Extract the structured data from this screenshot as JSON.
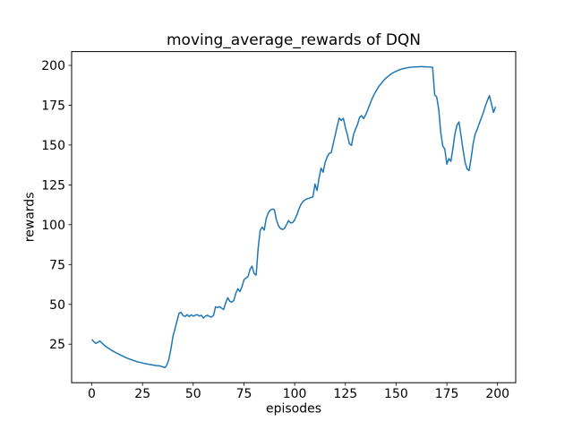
{
  "chart_data": {
    "type": "line",
    "title": "moving_average_rewards of DQN",
    "xlabel": "episodes",
    "ylabel": "rewards",
    "x_ticks": [
      0,
      25,
      50,
      75,
      100,
      125,
      150,
      175,
      200
    ],
    "y_ticks": [
      25,
      50,
      75,
      100,
      125,
      150,
      175,
      200
    ],
    "xlim": [
      -9.95,
      208.95
    ],
    "ylim": [
      0.85,
      208.65
    ],
    "grid": false,
    "legend_position": "none",
    "line_color": "#1f77b4",
    "axes_color": "#000000",
    "background_color": "#ffffff",
    "series": [
      {
        "name": "moving_average_rewards",
        "points": [
          [
            0,
            28
          ],
          [
            1,
            26.6
          ],
          [
            2,
            25.5
          ],
          [
            3,
            26.2
          ],
          [
            4,
            27
          ],
          [
            5,
            25.8
          ],
          [
            6,
            24.5
          ],
          [
            7,
            23.5
          ],
          [
            8,
            22.6
          ],
          [
            9,
            21.8
          ],
          [
            10,
            21
          ],
          [
            11,
            20.3
          ],
          [
            12,
            19.6
          ],
          [
            13,
            19
          ],
          [
            14,
            18.3
          ],
          [
            15,
            17.7
          ],
          [
            16,
            17.1
          ],
          [
            17,
            16.5
          ],
          [
            18,
            16
          ],
          [
            19,
            15.5
          ],
          [
            20,
            15
          ],
          [
            21,
            14.6
          ],
          [
            22,
            14.2
          ],
          [
            23,
            13.8
          ],
          [
            24,
            13.5
          ],
          [
            25,
            13.2
          ],
          [
            26,
            12.9
          ],
          [
            27,
            12.7
          ],
          [
            28,
            12.4
          ],
          [
            29,
            12.2
          ],
          [
            30,
            12
          ],
          [
            31,
            11.8
          ],
          [
            32,
            11.6
          ],
          [
            33,
            11.4
          ],
          [
            34,
            11.2
          ],
          [
            35,
            10.8
          ],
          [
            36,
            10.3
          ],
          [
            37,
            12
          ],
          [
            38,
            15.5
          ],
          [
            39,
            22
          ],
          [
            40,
            30
          ],
          [
            41,
            34.5
          ],
          [
            42,
            39.5
          ],
          [
            43,
            44.5
          ],
          [
            44,
            45
          ],
          [
            45,
            43
          ],
          [
            46,
            42.4
          ],
          [
            47,
            43.6
          ],
          [
            48,
            42.4
          ],
          [
            49,
            43.4
          ],
          [
            50,
            42.6
          ],
          [
            51,
            43.2
          ],
          [
            52,
            43.6
          ],
          [
            53,
            42.6
          ],
          [
            54,
            43.2
          ],
          [
            55,
            41.4
          ],
          [
            56,
            42.6
          ],
          [
            57,
            43.2
          ],
          [
            58,
            42.4
          ],
          [
            59,
            42
          ],
          [
            60,
            43.2
          ],
          [
            61,
            48.5
          ],
          [
            62,
            48
          ],
          [
            63,
            48.6
          ],
          [
            64,
            47.6
          ],
          [
            65,
            46.8
          ],
          [
            66,
            51
          ],
          [
            67,
            54.2
          ],
          [
            68,
            52
          ],
          [
            69,
            51.4
          ],
          [
            70,
            52.6
          ],
          [
            71,
            57
          ],
          [
            72,
            59.8
          ],
          [
            73,
            58
          ],
          [
            74,
            61
          ],
          [
            75,
            65.4
          ],
          [
            76,
            66.6
          ],
          [
            77,
            67.4
          ],
          [
            78,
            72
          ],
          [
            79,
            74
          ],
          [
            80,
            69.4
          ],
          [
            81,
            68.4
          ],
          [
            82,
            85
          ],
          [
            83,
            96.5
          ],
          [
            84,
            98.5
          ],
          [
            85,
            96.6
          ],
          [
            86,
            104
          ],
          [
            87,
            107.5
          ],
          [
            88,
            109.2
          ],
          [
            89,
            109.8
          ],
          [
            90,
            109.4
          ],
          [
            91,
            103.2
          ],
          [
            92,
            99.4
          ],
          [
            93,
            97.6
          ],
          [
            94,
            97
          ],
          [
            95,
            97.6
          ],
          [
            96,
            100.1
          ],
          [
            97,
            102.6
          ],
          [
            98,
            101.1
          ],
          [
            99,
            101.4
          ],
          [
            100,
            103
          ],
          [
            101,
            106
          ],
          [
            102,
            109.5
          ],
          [
            103,
            112.5
          ],
          [
            104,
            114.5
          ],
          [
            105,
            115.5
          ],
          [
            106,
            116.2
          ],
          [
            107,
            116.6
          ],
          [
            108,
            117
          ],
          [
            109,
            117.5
          ],
          [
            110,
            125.5
          ],
          [
            111,
            121.5
          ],
          [
            112,
            129
          ],
          [
            113,
            135.5
          ],
          [
            114,
            133
          ],
          [
            115,
            139
          ],
          [
            116,
            142.5
          ],
          [
            117,
            144.8
          ],
          [
            118,
            145.2
          ],
          [
            119,
            150.8
          ],
          [
            120,
            156.4
          ],
          [
            121,
            162
          ],
          [
            122,
            167
          ],
          [
            123,
            165.4
          ],
          [
            124,
            166.8
          ],
          [
            125,
            161
          ],
          [
            126,
            156.4
          ],
          [
            127,
            150.8
          ],
          [
            128,
            149.8
          ],
          [
            129,
            156.4
          ],
          [
            130,
            160
          ],
          [
            131,
            163
          ],
          [
            132,
            167.3
          ],
          [
            133,
            168.5
          ],
          [
            134,
            166.6
          ],
          [
            135,
            169
          ],
          [
            136,
            172
          ],
          [
            137,
            175.5
          ],
          [
            138,
            178.5
          ],
          [
            139,
            181.3
          ],
          [
            140,
            183.7
          ],
          [
            141,
            185.8
          ],
          [
            142,
            187.6
          ],
          [
            143,
            189.2
          ],
          [
            144,
            190.7
          ],
          [
            145,
            192
          ],
          [
            146,
            193.1
          ],
          [
            147,
            194.1
          ],
          [
            148,
            195
          ],
          [
            149,
            195.7
          ],
          [
            150,
            196.3
          ],
          [
            151,
            196.9
          ],
          [
            152,
            197.4
          ],
          [
            153,
            197.8
          ],
          [
            154,
            198.1
          ],
          [
            155,
            198.4
          ],
          [
            156,
            198.6
          ],
          [
            157,
            198.8
          ],
          [
            158,
            198.9
          ],
          [
            159,
            199
          ],
          [
            160,
            199.1
          ],
          [
            161,
            199.1
          ],
          [
            162,
            199.2
          ],
          [
            163,
            199.2
          ],
          [
            164,
            199.1
          ],
          [
            165,
            199.1
          ],
          [
            166,
            199
          ],
          [
            167,
            198.9
          ],
          [
            168,
            198.7
          ],
          [
            169,
            181.5
          ],
          [
            170,
            180.3
          ],
          [
            171,
            172.5
          ],
          [
            172,
            158
          ],
          [
            173,
            149.5
          ],
          [
            174,
            147.5
          ],
          [
            175,
            138
          ],
          [
            176,
            141.5
          ],
          [
            177,
            139.8
          ],
          [
            178,
            148
          ],
          [
            179,
            157
          ],
          [
            180,
            162.5
          ],
          [
            181,
            164.5
          ],
          [
            182,
            156
          ],
          [
            183,
            147
          ],
          [
            184,
            139
          ],
          [
            185,
            135
          ],
          [
            186,
            134
          ],
          [
            187,
            142
          ],
          [
            188,
            151
          ],
          [
            189,
            157
          ],
          [
            190,
            160
          ],
          [
            191,
            163.5
          ],
          [
            192,
            167
          ],
          [
            193,
            170.5
          ],
          [
            194,
            174.5
          ],
          [
            195,
            178
          ],
          [
            196,
            181
          ],
          [
            197,
            176
          ],
          [
            198,
            170.5
          ],
          [
            199,
            174
          ]
        ]
      }
    ]
  }
}
